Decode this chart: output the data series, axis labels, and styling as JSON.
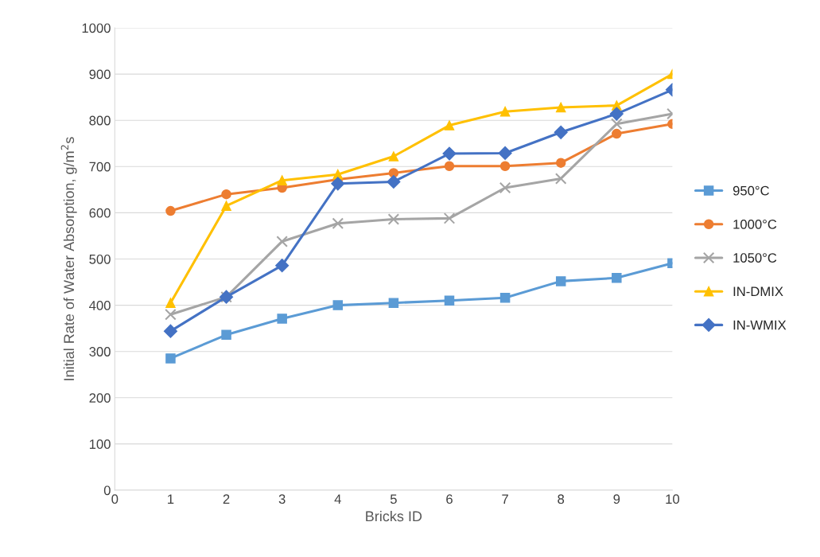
{
  "chart_data": {
    "type": "line",
    "xlabel": "Bricks ID",
    "ylabel": "Initial Rate of Water Absorption, g/m$^{2}$s",
    "x": [
      1,
      2,
      3,
      4,
      5,
      6,
      7,
      8,
      9,
      10
    ],
    "xlim": [
      0,
      10
    ],
    "xticks": [
      0,
      1,
      2,
      3,
      4,
      5,
      6,
      7,
      8,
      9,
      10
    ],
    "ylim": [
      0,
      1000
    ],
    "yticks": [
      0,
      100,
      200,
      300,
      400,
      500,
      600,
      700,
      800,
      900,
      1000
    ],
    "grid": "y",
    "legend": "right",
    "series": [
      {
        "name": "950°C",
        "color": "#5b9bd5",
        "marker": "square",
        "values": [
          285,
          336,
          371,
          400,
          405,
          410,
          416,
          452,
          459,
          491
        ]
      },
      {
        "name": "1000°C",
        "color": "#ed7d31",
        "marker": "circle",
        "values": [
          604,
          640,
          654,
          672,
          686,
          701,
          701,
          708,
          771,
          792
        ]
      },
      {
        "name": "1050°C",
        "color": "#a5a5a5",
        "marker": "cross",
        "values": [
          380,
          418,
          538,
          577,
          586,
          588,
          654,
          674,
          792,
          814
        ]
      },
      {
        "name": "IN-DMIX",
        "color": "#ffc000",
        "marker": "triangle",
        "values": [
          405,
          615,
          670,
          683,
          722,
          789,
          819,
          828,
          832,
          900
        ]
      },
      {
        "name": "IN-WMIX",
        "color": "#4472c4",
        "marker": "diamond",
        "values": [
          344,
          418,
          486,
          663,
          667,
          728,
          729,
          774,
          814,
          866
        ]
      }
    ]
  }
}
